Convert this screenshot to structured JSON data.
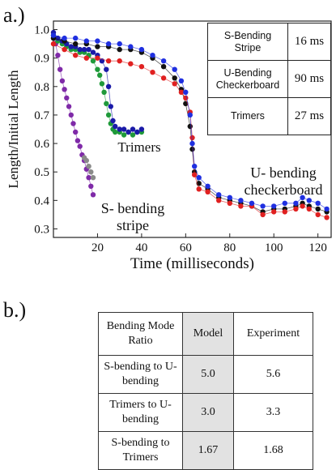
{
  "panel_a_label": "a.)",
  "panel_b_label": "b.)",
  "chart_data": {
    "type": "scatter",
    "xlabel": "Time (milliseconds)",
    "ylabel": "Length/Initial Length",
    "xlim": [
      0,
      126
    ],
    "ylim": [
      0.27,
      1.03
    ],
    "xticks": [
      20,
      40,
      60,
      80,
      100,
      120
    ],
    "yticks": [
      0.3,
      0.4,
      0.5,
      0.6,
      0.7,
      0.8,
      0.9,
      1.0
    ],
    "grid": false,
    "annotations": [
      {
        "text": "Trimers",
        "lines": [
          "Trimers"
        ]
      },
      {
        "text": "U- bending checkerboard",
        "lines": [
          "U- bending",
          "checkerboard"
        ]
      },
      {
        "text": "S- bending stripe",
        "lines": [
          "S- bending",
          "stripe"
        ]
      }
    ],
    "series": [
      {
        "color": "#7f2aa8",
        "points": [
          [
            0,
            0.97
          ],
          [
            1,
            0.95
          ],
          [
            2,
            0.91
          ],
          [
            3,
            0.86
          ],
          [
            4,
            0.82
          ],
          [
            5,
            0.79
          ],
          [
            6,
            0.76
          ],
          [
            7,
            0.73
          ],
          [
            8,
            0.7
          ],
          [
            9,
            0.67
          ],
          [
            10,
            0.64
          ],
          [
            11,
            0.61
          ],
          [
            12,
            0.59
          ],
          [
            13,
            0.56
          ],
          [
            14,
            0.54
          ],
          [
            15,
            0.51
          ],
          [
            16,
            0.48
          ],
          [
            17,
            0.45
          ],
          [
            18,
            0.42
          ]
        ]
      },
      {
        "color": "#8a8a8a",
        "points": [
          [
            14,
            0.55
          ],
          [
            15,
            0.54
          ],
          [
            16,
            0.52
          ],
          [
            17,
            0.5
          ],
          [
            18,
            0.48
          ]
        ]
      },
      {
        "color": "#1f9a3a",
        "points": [
          [
            0,
            0.98
          ],
          [
            2,
            0.96
          ],
          [
            4,
            0.95
          ],
          [
            6,
            0.94
          ],
          [
            8,
            0.93
          ],
          [
            10,
            0.93
          ],
          [
            12,
            0.92
          ],
          [
            14,
            0.92
          ],
          [
            16,
            0.91
          ],
          [
            18,
            0.89
          ],
          [
            20,
            0.86
          ],
          [
            21,
            0.84
          ],
          [
            22,
            0.81
          ],
          [
            23,
            0.78
          ],
          [
            24,
            0.74
          ],
          [
            25,
            0.7
          ],
          [
            26,
            0.67
          ],
          [
            27,
            0.65
          ],
          [
            28,
            0.64
          ],
          [
            30,
            0.64
          ],
          [
            32,
            0.63
          ],
          [
            34,
            0.64
          ],
          [
            36,
            0.63
          ],
          [
            38,
            0.64
          ],
          [
            40,
            0.64
          ]
        ]
      },
      {
        "color": "#1a1aa8",
        "points": [
          [
            0,
            0.99
          ],
          [
            2,
            0.97
          ],
          [
            4,
            0.96
          ],
          [
            6,
            0.95
          ],
          [
            8,
            0.94
          ],
          [
            10,
            0.94
          ],
          [
            12,
            0.93
          ],
          [
            14,
            0.93
          ],
          [
            16,
            0.93
          ],
          [
            18,
            0.92
          ],
          [
            20,
            0.91
          ],
          [
            22,
            0.89
          ],
          [
            24,
            0.86
          ],
          [
            25,
            0.8
          ],
          [
            26,
            0.73
          ],
          [
            27,
            0.68
          ],
          [
            28,
            0.66
          ],
          [
            30,
            0.65
          ],
          [
            32,
            0.65
          ],
          [
            34,
            0.64
          ],
          [
            36,
            0.65
          ],
          [
            38,
            0.64
          ],
          [
            40,
            0.65
          ]
        ]
      },
      {
        "color": "#111111",
        "points": [
          [
            0,
            0.97
          ],
          [
            5,
            0.96
          ],
          [
            10,
            0.95
          ],
          [
            15,
            0.95
          ],
          [
            20,
            0.94
          ],
          [
            25,
            0.94
          ],
          [
            30,
            0.93
          ],
          [
            35,
            0.93
          ],
          [
            40,
            0.92
          ],
          [
            45,
            0.9
          ],
          [
            50,
            0.87
          ],
          [
            55,
            0.83
          ],
          [
            58,
            0.79
          ],
          [
            60,
            0.74
          ],
          [
            62,
            0.66
          ],
          [
            63,
            0.58
          ],
          [
            64,
            0.5
          ],
          [
            66,
            0.46
          ],
          [
            70,
            0.44
          ],
          [
            75,
            0.41
          ],
          [
            80,
            0.4
          ],
          [
            85,
            0.39
          ],
          [
            90,
            0.38
          ],
          [
            95,
            0.36
          ],
          [
            100,
            0.37
          ],
          [
            105,
            0.37
          ],
          [
            110,
            0.38
          ],
          [
            113,
            0.39
          ],
          [
            116,
            0.38
          ],
          [
            120,
            0.37
          ],
          [
            124,
            0.36
          ]
        ]
      },
      {
        "color": "#e02020",
        "points": [
          [
            0,
            0.95
          ],
          [
            5,
            0.93
          ],
          [
            10,
            0.91
          ],
          [
            15,
            0.9
          ],
          [
            20,
            0.9
          ],
          [
            25,
            0.89
          ],
          [
            30,
            0.89
          ],
          [
            35,
            0.88
          ],
          [
            40,
            0.87
          ],
          [
            45,
            0.85
          ],
          [
            50,
            0.83
          ],
          [
            55,
            0.81
          ],
          [
            58,
            0.78
          ],
          [
            60,
            0.76
          ],
          [
            62,
            0.71
          ],
          [
            63,
            0.62
          ],
          [
            64,
            0.49
          ],
          [
            66,
            0.44
          ],
          [
            70,
            0.43
          ],
          [
            75,
            0.4
          ],
          [
            80,
            0.39
          ],
          [
            85,
            0.38
          ],
          [
            90,
            0.38
          ],
          [
            95,
            0.35
          ],
          [
            100,
            0.36
          ],
          [
            105,
            0.36
          ],
          [
            110,
            0.37
          ],
          [
            113,
            0.38
          ],
          [
            116,
            0.37
          ],
          [
            120,
            0.35
          ],
          [
            124,
            0.34
          ]
        ]
      },
      {
        "color": "#1f2fe0",
        "points": [
          [
            0,
            0.98
          ],
          [
            5,
            0.97
          ],
          [
            10,
            0.97
          ],
          [
            15,
            0.96
          ],
          [
            20,
            0.96
          ],
          [
            25,
            0.95
          ],
          [
            30,
            0.95
          ],
          [
            35,
            0.94
          ],
          [
            40,
            0.93
          ],
          [
            45,
            0.91
          ],
          [
            50,
            0.89
          ],
          [
            55,
            0.86
          ],
          [
            58,
            0.82
          ],
          [
            60,
            0.78
          ],
          [
            62,
            0.7
          ],
          [
            63,
            0.6
          ],
          [
            64,
            0.52
          ],
          [
            66,
            0.48
          ],
          [
            70,
            0.45
          ],
          [
            75,
            0.42
          ],
          [
            80,
            0.41
          ],
          [
            85,
            0.4
          ],
          [
            90,
            0.39
          ],
          [
            95,
            0.38
          ],
          [
            100,
            0.38
          ],
          [
            105,
            0.39
          ],
          [
            110,
            0.39
          ],
          [
            113,
            0.41
          ],
          [
            116,
            0.4
          ],
          [
            120,
            0.39
          ],
          [
            124,
            0.37
          ]
        ]
      }
    ]
  },
  "inset_table": {
    "rows": [
      {
        "mode": "S-Bending Stripe",
        "time": "16 ms"
      },
      {
        "mode": "U-Bending Checkerboard",
        "time": "90 ms"
      },
      {
        "mode": "Trimers",
        "time": "27 ms"
      }
    ]
  },
  "ratio_table": {
    "headers": [
      "Bending Mode Ratio",
      "Model",
      "Experiment"
    ],
    "rows": [
      [
        "S-bending to U-bending",
        "5.0",
        "5.6"
      ],
      [
        "Trimers to U-bending",
        "3.0",
        "3.3"
      ],
      [
        "S-bending to Trimers",
        "1.67",
        "1.68"
      ]
    ]
  }
}
